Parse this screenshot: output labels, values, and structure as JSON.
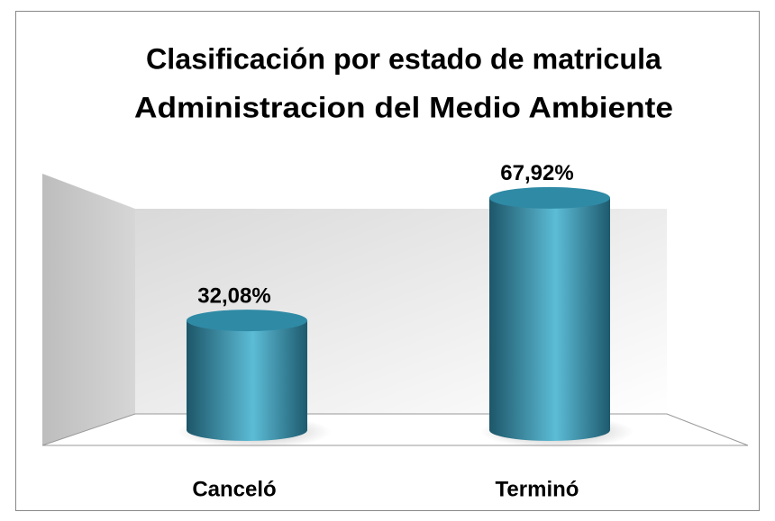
{
  "chart_data": {
    "type": "bar3d",
    "title": [
      "Clasificación por estado de matricula",
      "Administracion del Medio Ambiente"
    ],
    "categories": [
      "Canceló",
      "Terminó"
    ],
    "values": [
      32.08,
      67.92
    ],
    "value_labels": [
      "32,08%",
      "67,92%"
    ],
    "color": "#2f8aa5"
  }
}
